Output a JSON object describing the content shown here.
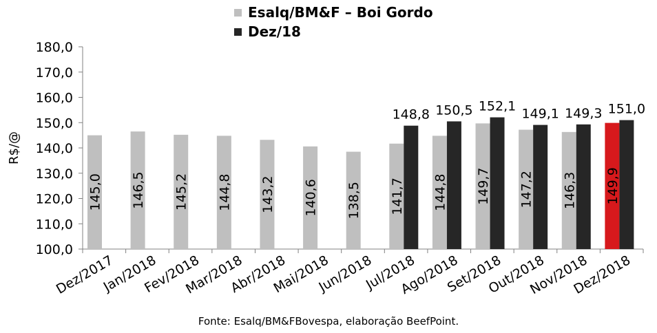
{
  "chart_data": {
    "type": "bar",
    "categories": [
      "Dez/2017",
      "Jan/2018",
      "Fev/2018",
      "Mar/2018",
      "Abr/2018",
      "Mai/2018",
      "Jun/2018",
      "Jul/2018",
      "Ago/2018",
      "Set/2018",
      "Out/2018",
      "Nov/2018",
      "Dez/2018"
    ],
    "series": [
      {
        "name": "Esalq/BM&F – Boi Gordo",
        "color": "#bfbfbf",
        "highlight": {
          "index": 12,
          "color": "#d7191c"
        },
        "values": [
          145.0,
          146.5,
          145.2,
          144.8,
          143.2,
          140.6,
          138.5,
          141.7,
          144.8,
          149.7,
          147.2,
          146.3,
          149.9
        ],
        "labels": [
          "145,0",
          "146,5",
          "145,2",
          "144,8",
          "143,2",
          "140,6",
          "138,5",
          "141,7",
          "144,8",
          "149,7",
          "147,2",
          "146,3",
          "149,9"
        ]
      },
      {
        "name": "Dez/18",
        "color": "#262626",
        "values": [
          null,
          null,
          null,
          null,
          null,
          null,
          null,
          148.8,
          150.5,
          152.1,
          149.1,
          149.3,
          151.0
        ],
        "labels": [
          null,
          null,
          null,
          null,
          null,
          null,
          null,
          "148,8",
          "150,5",
          "152,1",
          "149,1",
          "149,3",
          "151,0"
        ]
      }
    ],
    "ylabel": "R$/@",
    "xlabel": "",
    "ylim": [
      100,
      180
    ],
    "yticks": [
      "100,0",
      "110,0",
      "120,0",
      "130,0",
      "140,0",
      "150,0",
      "160,0",
      "170,0",
      "180,0"
    ],
    "grid": false,
    "legend": "top-center",
    "source": "Fonte: Esalq/BM&FBovespa, elaboração BeefPoint."
  }
}
